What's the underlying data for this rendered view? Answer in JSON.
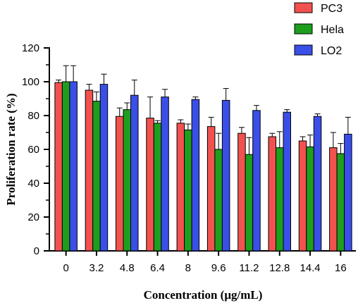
{
  "chart_data": {
    "type": "bar",
    "xlabel": "Concentration (μg/mL)",
    "ylabel": "Proliferation rate (%)",
    "ylim": [
      0,
      120
    ],
    "yticks": [
      0,
      20,
      40,
      60,
      80,
      100,
      120
    ],
    "categories": [
      "0",
      "3.2",
      "4.8",
      "6.4",
      "8",
      "9.6",
      "11.2",
      "12.8",
      "14.4",
      "16"
    ],
    "legend_position": "top-right",
    "grid": false,
    "error_bars": true,
    "series": [
      {
        "name": "PC3",
        "color": "#f2524f",
        "values": [
          99.5,
          95,
          79.5,
          78.5,
          75.5,
          73.5,
          69.5,
          67.5,
          65,
          61
        ],
        "errors": [
          1.5,
          3.5,
          5,
          12.5,
          2,
          5.5,
          3.5,
          2,
          2.5,
          9
        ]
      },
      {
        "name": "Hela",
        "color": "#1e9e1e",
        "values": [
          100,
          88.5,
          83.5,
          75.5,
          71.5,
          60,
          57,
          61,
          61.5,
          57.5
        ],
        "errors": [
          9.5,
          5.5,
          4,
          1.5,
          3.5,
          9.5,
          10,
          9.5,
          7,
          6
        ]
      },
      {
        "name": "LO2",
        "color": "#3a4fe8",
        "values": [
          100,
          98.5,
          92,
          91,
          89.5,
          89,
          83,
          82,
          79.5,
          69
        ],
        "errors": [
          9.5,
          6,
          9,
          4.5,
          1.5,
          7,
          3,
          1.5,
          1.5,
          10
        ]
      }
    ]
  }
}
